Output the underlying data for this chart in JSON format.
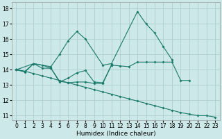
{
  "xlabel": "Humidex (Indice chaleur)",
  "bg_color": "#cde8e8",
  "grid_color": "#afd0ce",
  "line_color": "#1a7a6a",
  "xlim": [
    -0.5,
    23.5
  ],
  "ylim": [
    10.7,
    18.4
  ],
  "yticks": [
    11,
    12,
    13,
    14,
    15,
    16,
    17,
    18
  ],
  "xticks": [
    0,
    1,
    2,
    3,
    4,
    5,
    6,
    7,
    8,
    9,
    10,
    11,
    12,
    13,
    14,
    15,
    16,
    17,
    18,
    19,
    20,
    21,
    22,
    23
  ],
  "series1_x": [
    0,
    1,
    2,
    3,
    4,
    5,
    6,
    7,
    8,
    9,
    10,
    11,
    12,
    13,
    14,
    15,
    16,
    17,
    18,
    19,
    20
  ],
  "series1_y": [
    14.0,
    13.9,
    14.4,
    14.3,
    14.1,
    13.25,
    13.15,
    13.2,
    13.2,
    13.1,
    13.1,
    14.3,
    14.25,
    14.2,
    14.5,
    14.5,
    14.5,
    14.5,
    14.5,
    13.3,
    13.3
  ],
  "series2_x": [
    0,
    1,
    2,
    3,
    4,
    5,
    6,
    7,
    8,
    9,
    10,
    11
  ],
  "series2_y": [
    14.0,
    13.85,
    14.4,
    14.1,
    14.1,
    13.2,
    13.45,
    13.8,
    13.95,
    13.2,
    13.15,
    14.3
  ],
  "series3_x": [
    0,
    2,
    4,
    5,
    6,
    7,
    8,
    10,
    11,
    14,
    15,
    16,
    17,
    18
  ],
  "series3_y": [
    14.0,
    14.4,
    14.2,
    15.0,
    15.9,
    16.5,
    16.0,
    14.3,
    14.4,
    17.8,
    17.0,
    16.4,
    15.5,
    14.65
  ],
  "series4_x": [
    0,
    1,
    2,
    3,
    4,
    5,
    6,
    7,
    8,
    9,
    10,
    11,
    12,
    13,
    14,
    15,
    16,
    17,
    18,
    19,
    20,
    21,
    22,
    23
  ],
  "series4_y": [
    14.0,
    13.9,
    13.75,
    13.6,
    13.45,
    13.3,
    13.15,
    13.0,
    12.85,
    12.7,
    12.55,
    12.4,
    12.25,
    12.1,
    11.95,
    11.8,
    11.65,
    11.5,
    11.35,
    11.2,
    11.1,
    11.0,
    11.0,
    10.9
  ]
}
